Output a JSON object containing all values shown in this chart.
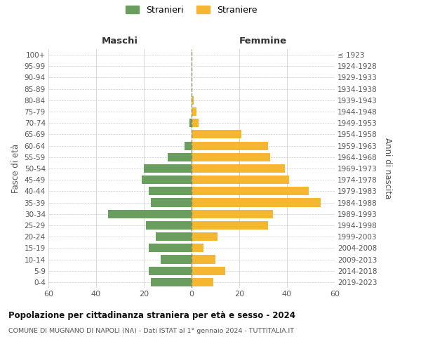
{
  "age_groups": [
    "0-4",
    "5-9",
    "10-14",
    "15-19",
    "20-24",
    "25-29",
    "30-34",
    "35-39",
    "40-44",
    "45-49",
    "50-54",
    "55-59",
    "60-64",
    "65-69",
    "70-74",
    "75-79",
    "80-84",
    "85-89",
    "90-94",
    "95-99",
    "100+"
  ],
  "birth_years": [
    "2019-2023",
    "2014-2018",
    "2009-2013",
    "2004-2008",
    "1999-2003",
    "1994-1998",
    "1989-1993",
    "1984-1988",
    "1979-1983",
    "1974-1978",
    "1969-1973",
    "1964-1968",
    "1959-1963",
    "1954-1958",
    "1949-1953",
    "1944-1948",
    "1939-1943",
    "1934-1938",
    "1929-1933",
    "1924-1928",
    "≤ 1923"
  ],
  "males": [
    17,
    18,
    13,
    18,
    15,
    19,
    35,
    17,
    18,
    21,
    20,
    10,
    3,
    0,
    1,
    0,
    0,
    0,
    0,
    0,
    0
  ],
  "females": [
    9,
    14,
    10,
    5,
    11,
    32,
    34,
    54,
    49,
    41,
    39,
    33,
    32,
    21,
    3,
    2,
    1,
    0,
    0,
    0,
    0
  ],
  "male_color": "#6a9e5f",
  "female_color": "#f5b731",
  "male_label": "Stranieri",
  "female_label": "Straniere",
  "title1": "Popolazione per cittadinanza straniera per età e sesso - 2024",
  "title2": "COMUNE DI MUGNANO DI NAPOLI (NA) - Dati ISTAT al 1° gennaio 2024 - TUTTITALIA.IT",
  "xlabel_left": "Maschi",
  "xlabel_right": "Femmine",
  "ylabel_left": "Fasce di età",
  "ylabel_right": "Anni di nascita",
  "xlim": 60,
  "background_color": "#ffffff",
  "grid_color": "#cccccc"
}
